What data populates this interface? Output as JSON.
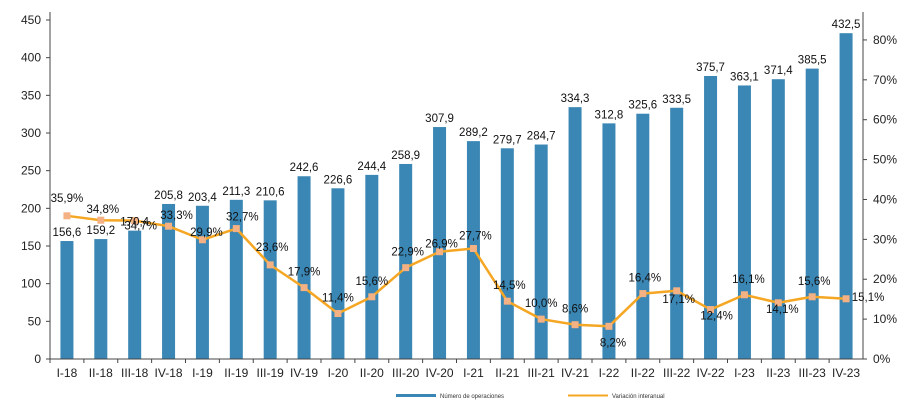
{
  "chart_data": {
    "type": "bar",
    "categories": [
      "I-18",
      "II-18",
      "III-18",
      "IV-18",
      "I-19",
      "II-19",
      "III-19",
      "IV-19",
      "I-20",
      "II-20",
      "III-20",
      "IV-20",
      "I-21",
      "II-21",
      "III-21",
      "IV-21",
      "I-22",
      "II-22",
      "III-22",
      "IV-22",
      "I-23",
      "II-23",
      "III-23",
      "IV-23"
    ],
    "series": [
      {
        "name": "Número de operaciones",
        "type": "bar",
        "axis": "left",
        "color": "#3a86b4",
        "values": [
          156.6,
          159.2,
          170.4,
          205.8,
          203.4,
          211.3,
          210.6,
          242.6,
          226.6,
          244.4,
          258.9,
          307.9,
          289.2,
          279.7,
          284.7,
          334.3,
          312.8,
          325.6,
          333.5,
          375.7,
          363.1,
          371.4,
          385.5,
          432.5
        ],
        "labels": [
          "156,6",
          "159,2",
          "170,4",
          "205,8",
          "203,4",
          "211,3",
          "210,6",
          "242,6",
          "226,6",
          "244,4",
          "258,9",
          "307,9",
          "289,2",
          "279,7",
          "284,7",
          "334,3",
          "312,8",
          "325,6",
          "333,5",
          "375,7",
          "363,1",
          "371,4",
          "385,5",
          "432,5"
        ]
      },
      {
        "name": "Variación interanual",
        "type": "line",
        "axis": "right",
        "color": "#f5a623",
        "marker_color": "#f4b183",
        "values": [
          35.9,
          34.8,
          34.7,
          33.3,
          29.9,
          32.7,
          23.6,
          17.9,
          11.4,
          15.6,
          22.9,
          26.9,
          27.7,
          14.5,
          10.0,
          8.6,
          8.2,
          16.4,
          17.1,
          12.4,
          16.1,
          14.1,
          15.6,
          15.1
        ],
        "labels": [
          "35,9%",
          "34,8%",
          "34,7%",
          "33,3%",
          "29,9%",
          "32,7%",
          "23,6%",
          "17,9%",
          "11,4%",
          "15,6%",
          "22,9%",
          "26,9%",
          "27,7%",
          "14,5%",
          "10,0%",
          "8,6%",
          "8,2%",
          "16,4%",
          "17,1%",
          "12,4%",
          "16,1%",
          "14,1%",
          "15,6%",
          "15,1%"
        ]
      }
    ],
    "left_axis": {
      "ylim": [
        0,
        450
      ],
      "ticks": [
        "0",
        "50",
        "100",
        "150",
        "200",
        "250",
        "300",
        "350",
        "400",
        "450"
      ]
    },
    "right_axis": {
      "ylim": [
        0,
        85
      ],
      "ticks": [
        "0%",
        "10%",
        "20%",
        "30%",
        "40%",
        "50%",
        "60%",
        "70%",
        "80%"
      ]
    },
    "grid": false,
    "legend_position": "bottom"
  }
}
